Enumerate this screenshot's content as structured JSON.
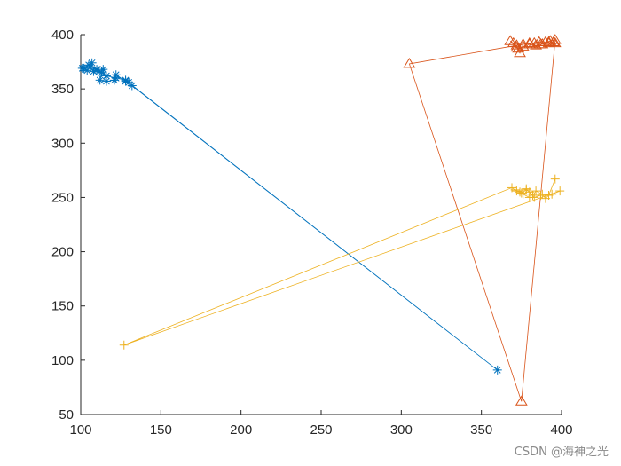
{
  "chart_data": {
    "type": "line",
    "title": "",
    "xlabel": "",
    "ylabel": "",
    "xlim": [
      100,
      400
    ],
    "ylim": [
      50,
      400
    ],
    "xticks": [
      100,
      150,
      200,
      250,
      300,
      350,
      400
    ],
    "yticks": [
      50,
      100,
      150,
      200,
      250,
      300,
      350,
      400
    ],
    "grid": false,
    "legend": "none",
    "series": [
      {
        "color": "#0072BD",
        "marker": "asterisk",
        "points": [
          [
            101,
            369
          ],
          [
            104,
            367
          ],
          [
            106,
            370
          ],
          [
            107,
            374
          ],
          [
            108,
            366
          ],
          [
            110,
            368
          ],
          [
            113,
            365
          ],
          [
            112,
            358
          ],
          [
            114,
            368
          ],
          [
            116,
            357
          ],
          [
            121,
            358
          ],
          [
            122,
            363
          ],
          [
            128,
            357
          ],
          [
            130,
            356
          ],
          [
            132,
            353
          ],
          [
            360,
            91
          ],
          [
            128,
            358
          ],
          [
            122,
            360
          ],
          [
            116,
            362
          ],
          [
            110,
            367
          ],
          [
            105,
            372
          ],
          [
            102,
            369
          ]
        ]
      },
      {
        "color": "#D95319",
        "marker": "triangle",
        "points": [
          [
            395,
            393
          ],
          [
            392,
            392
          ],
          [
            388,
            391
          ],
          [
            384,
            390
          ],
          [
            380,
            391
          ],
          [
            376,
            389
          ],
          [
            373,
            387
          ],
          [
            370,
            392
          ],
          [
            368,
            394
          ],
          [
            372,
            388
          ],
          [
            374,
            383
          ],
          [
            376,
            391
          ],
          [
            383,
            392
          ],
          [
            387,
            391
          ],
          [
            390,
            393
          ],
          [
            393,
            394
          ],
          [
            396,
            395
          ],
          [
            375,
            62
          ],
          [
            305,
            373
          ],
          [
            372,
            390
          ],
          [
            380,
            392
          ],
          [
            386,
            393
          ],
          [
            392,
            393
          ],
          [
            396,
            392
          ]
        ]
      },
      {
        "color": "#EDB120",
        "marker": "plus",
        "points": [
          [
            396,
            267
          ],
          [
            392,
            252
          ],
          [
            390,
            249
          ],
          [
            388,
            253
          ],
          [
            384,
            256
          ],
          [
            382,
            252
          ],
          [
            380,
            255
          ],
          [
            378,
            257
          ],
          [
            375,
            254
          ],
          [
            372,
            256
          ],
          [
            369,
            259
          ],
          [
            127,
            114
          ],
          [
            399,
            256
          ],
          [
            394,
            253
          ],
          [
            387,
            252
          ],
          [
            383,
            250
          ],
          [
            378,
            258
          ],
          [
            374,
            255
          ],
          [
            371,
            257
          ],
          [
            376,
            253
          ],
          [
            380,
            250
          ]
        ]
      }
    ]
  },
  "watermark": "CSDN @海神之光"
}
